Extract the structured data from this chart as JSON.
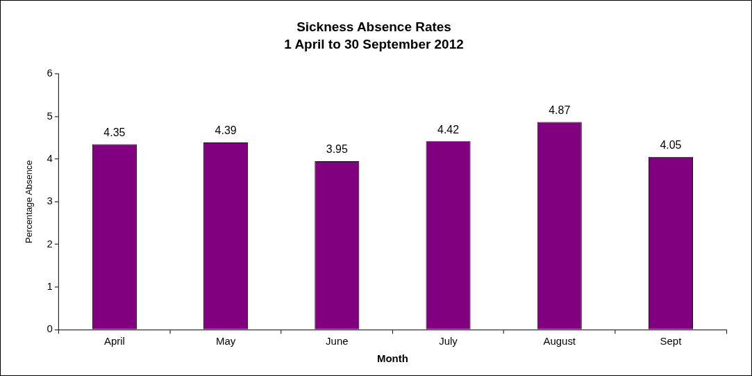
{
  "chart_data": {
    "type": "bar",
    "title": "Sickness Absence Rates",
    "subtitle": "1 April to 30 September 2012",
    "xlabel": "Month",
    "ylabel": "Percentage Absence",
    "categories": [
      "April",
      "May",
      "June",
      "July",
      "August",
      "Sept"
    ],
    "values": [
      4.35,
      4.39,
      3.95,
      4.42,
      4.87,
      4.05
    ],
    "color": "#800080",
    "ylim": [
      0,
      6
    ],
    "yticks": [
      0,
      1,
      2,
      3,
      4,
      5,
      6
    ],
    "grid": false,
    "legend": false,
    "data_labels": true
  }
}
